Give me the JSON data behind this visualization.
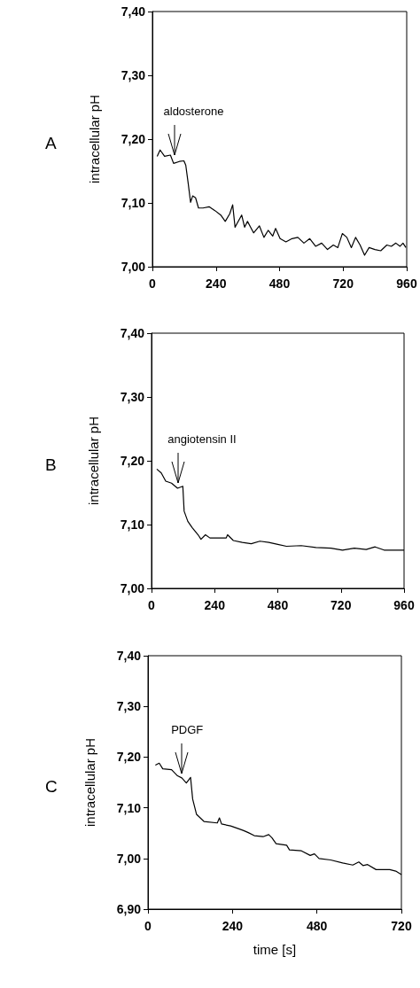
{
  "chart_data": [
    {
      "type": "line",
      "title": "A",
      "ylabel": "intracellular pH",
      "xlim": [
        0,
        960
      ],
      "xticks": [
        0,
        240,
        480,
        720,
        960
      ],
      "ylim": [
        7.0,
        7.4
      ],
      "yticks": [
        {
          "value": 7.0,
          "label": "7,00"
        },
        {
          "value": 7.1,
          "label": "7,10"
        },
        {
          "value": 7.2,
          "label": "7,20"
        },
        {
          "value": 7.3,
          "label": "7,30"
        },
        {
          "value": 7.4,
          "label": "7,40"
        }
      ],
      "annotations": [
        {
          "text": "aldosterone",
          "x": 82,
          "y": 7.17
        }
      ],
      "series": [
        {
          "color": "#000000",
          "x": [
            18,
            29,
            46,
            68,
            80,
            102,
            119,
            126,
            135,
            144,
            152,
            163,
            174,
            191,
            214,
            236,
            258,
            275,
            292,
            303,
            312,
            337,
            348,
            359,
            382,
            404,
            421,
            437,
            454,
            465,
            482,
            504,
            527,
            549,
            572,
            594,
            616,
            639,
            661,
            683,
            700,
            717,
            734,
            751,
            767,
            784,
            801,
            818,
            840,
            862,
            885,
            902,
            919,
            935,
            946,
            957
          ],
          "values": [
            7.173,
            7.183,
            7.173,
            7.175,
            7.162,
            7.165,
            7.166,
            7.159,
            7.131,
            7.101,
            7.111,
            7.108,
            7.092,
            7.092,
            7.094,
            7.088,
            7.081,
            7.071,
            7.083,
            7.097,
            7.062,
            7.081,
            7.062,
            7.071,
            7.053,
            7.064,
            7.046,
            7.057,
            7.048,
            7.06,
            7.044,
            7.039,
            7.044,
            7.046,
            7.037,
            7.044,
            7.032,
            7.037,
            7.027,
            7.034,
            7.03,
            7.052,
            7.046,
            7.03,
            7.046,
            7.034,
            7.018,
            7.03,
            7.027,
            7.025,
            7.034,
            7.032,
            7.037,
            7.032,
            7.037,
            7.03
          ]
        }
      ]
    },
    {
      "type": "line",
      "title": "B",
      "ylabel": "intracellular pH",
      "xlim": [
        0,
        960
      ],
      "xticks": [
        0,
        240,
        480,
        720,
        960
      ],
      "ylim": [
        7.0,
        7.4
      ],
      "yticks": [
        {
          "value": 7.0,
          "label": "7,00"
        },
        {
          "value": 7.1,
          "label": "7,10"
        },
        {
          "value": 7.2,
          "label": "7,20"
        },
        {
          "value": 7.3,
          "label": "7,30"
        },
        {
          "value": 7.4,
          "label": "7,40"
        }
      ],
      "annotations": [
        {
          "text": "angiotensin II",
          "x": 102,
          "y": 7.16
        }
      ],
      "series": [
        {
          "color": "#000000",
          "x": [
            20,
            37,
            54,
            76,
            99,
            119,
            124,
            138,
            155,
            177,
            188,
            205,
            222,
            284,
            289,
            311,
            345,
            379,
            412,
            446,
            480,
            513,
            569,
            625,
            682,
            726,
            771,
            816,
            850,
            884,
            960
          ],
          "values": [
            7.187,
            7.181,
            7.168,
            7.165,
            7.157,
            7.16,
            7.121,
            7.105,
            7.095,
            7.084,
            7.077,
            7.084,
            7.079,
            7.079,
            7.084,
            7.075,
            7.072,
            7.07,
            7.074,
            7.072,
            7.069,
            7.066,
            7.067,
            7.064,
            7.063,
            7.06,
            7.063,
            7.061,
            7.065,
            7.06,
            7.06
          ]
        }
      ]
    },
    {
      "type": "line",
      "title": "C",
      "ylabel": "intracellular pH",
      "xlabel": "time [s]",
      "xlim": [
        0,
        720
      ],
      "xticks": [
        0,
        240,
        480,
        720
      ],
      "ylim": [
        6.9,
        7.4
      ],
      "yticks": [
        {
          "value": 6.9,
          "label": "6,90"
        },
        {
          "value": 7.0,
          "label": "7,00"
        },
        {
          "value": 7.1,
          "label": "7,10"
        },
        {
          "value": 7.2,
          "label": "7,20"
        },
        {
          "value": 7.3,
          "label": "7,30"
        },
        {
          "value": 7.4,
          "label": "7,40"
        }
      ],
      "annotations": [
        {
          "text": "PDGF",
          "x": 96,
          "y": 7.16
        }
      ],
      "series": [
        {
          "color": "#000000",
          "x": [
            21,
            32,
            42,
            67,
            84,
            96,
            109,
            121,
            127,
            138,
            159,
            197,
            203,
            209,
            235,
            260,
            272,
            285,
            302,
            327,
            343,
            352,
            364,
            394,
            402,
            436,
            461,
            473,
            486,
            519,
            553,
            582,
            599,
            611,
            624,
            648,
            687,
            704,
            720
          ],
          "values": [
            7.184,
            7.188,
            7.177,
            7.175,
            7.163,
            7.159,
            7.149,
            7.16,
            7.117,
            7.087,
            7.073,
            7.07,
            7.08,
            7.068,
            7.064,
            7.058,
            7.055,
            7.051,
            7.045,
            7.043,
            7.047,
            7.041,
            7.029,
            7.026,
            7.017,
            7.015,
            7.006,
            7.009,
            7.0,
            6.997,
            6.991,
            6.987,
            6.993,
            6.986,
            6.988,
            6.978,
            6.978,
            6.975,
            6.968
          ]
        }
      ]
    }
  ]
}
